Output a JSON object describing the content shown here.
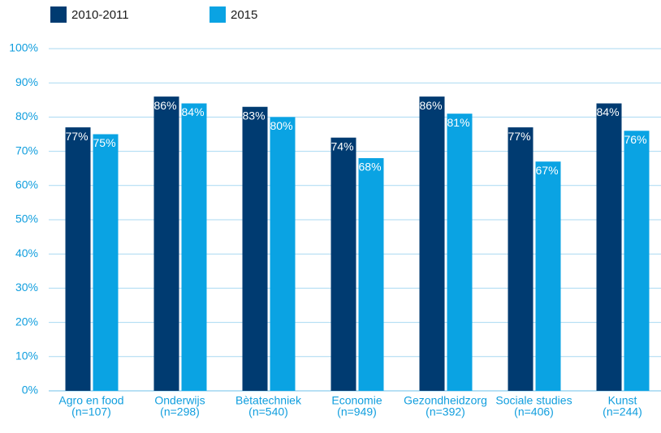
{
  "chart_data": {
    "type": "bar",
    "categories": [
      [
        "Agro en food",
        "(n=107)"
      ],
      [
        "Onderwijs",
        "(n=298)"
      ],
      [
        "Bètatechniek",
        "(n=540)"
      ],
      [
        "Economie",
        "(n=949)"
      ],
      [
        "Gezondheidzorg",
        "(n=392)"
      ],
      [
        "Sociale studies",
        "(n=406)"
      ],
      [
        "Kunst",
        "(n=244)"
      ]
    ],
    "series": [
      {
        "name": "2010-2011",
        "color": "#003b71",
        "values": [
          77,
          86,
          83,
          74,
          86,
          77,
          84
        ],
        "value_labels": [
          "77%",
          "86%",
          "83%",
          "74%",
          "86%",
          "77%",
          "84%"
        ]
      },
      {
        "name": "2015",
        "color": "#0aa3e3",
        "values": [
          75,
          84,
          80,
          68,
          81,
          67,
          76
        ],
        "value_labels": [
          "75%",
          "84%",
          "80%",
          "68%",
          "81%",
          "67%",
          "76%"
        ]
      }
    ],
    "ylim": [
      0,
      100
    ],
    "yticks": [
      {
        "value": 0,
        "label": "0%"
      },
      {
        "value": 10,
        "label": "10%"
      },
      {
        "value": 20,
        "label": "20%"
      },
      {
        "value": 30,
        "label": "30%"
      },
      {
        "value": 40,
        "label": "40%"
      },
      {
        "value": 50,
        "label": "50%"
      },
      {
        "value": 60,
        "label": "60%"
      },
      {
        "value": 70,
        "label": "70%"
      },
      {
        "value": 80,
        "label": "80%"
      },
      {
        "value": 90,
        "label": "90%"
      },
      {
        "value": 100,
        "label": "100%"
      }
    ],
    "grid": true
  }
}
